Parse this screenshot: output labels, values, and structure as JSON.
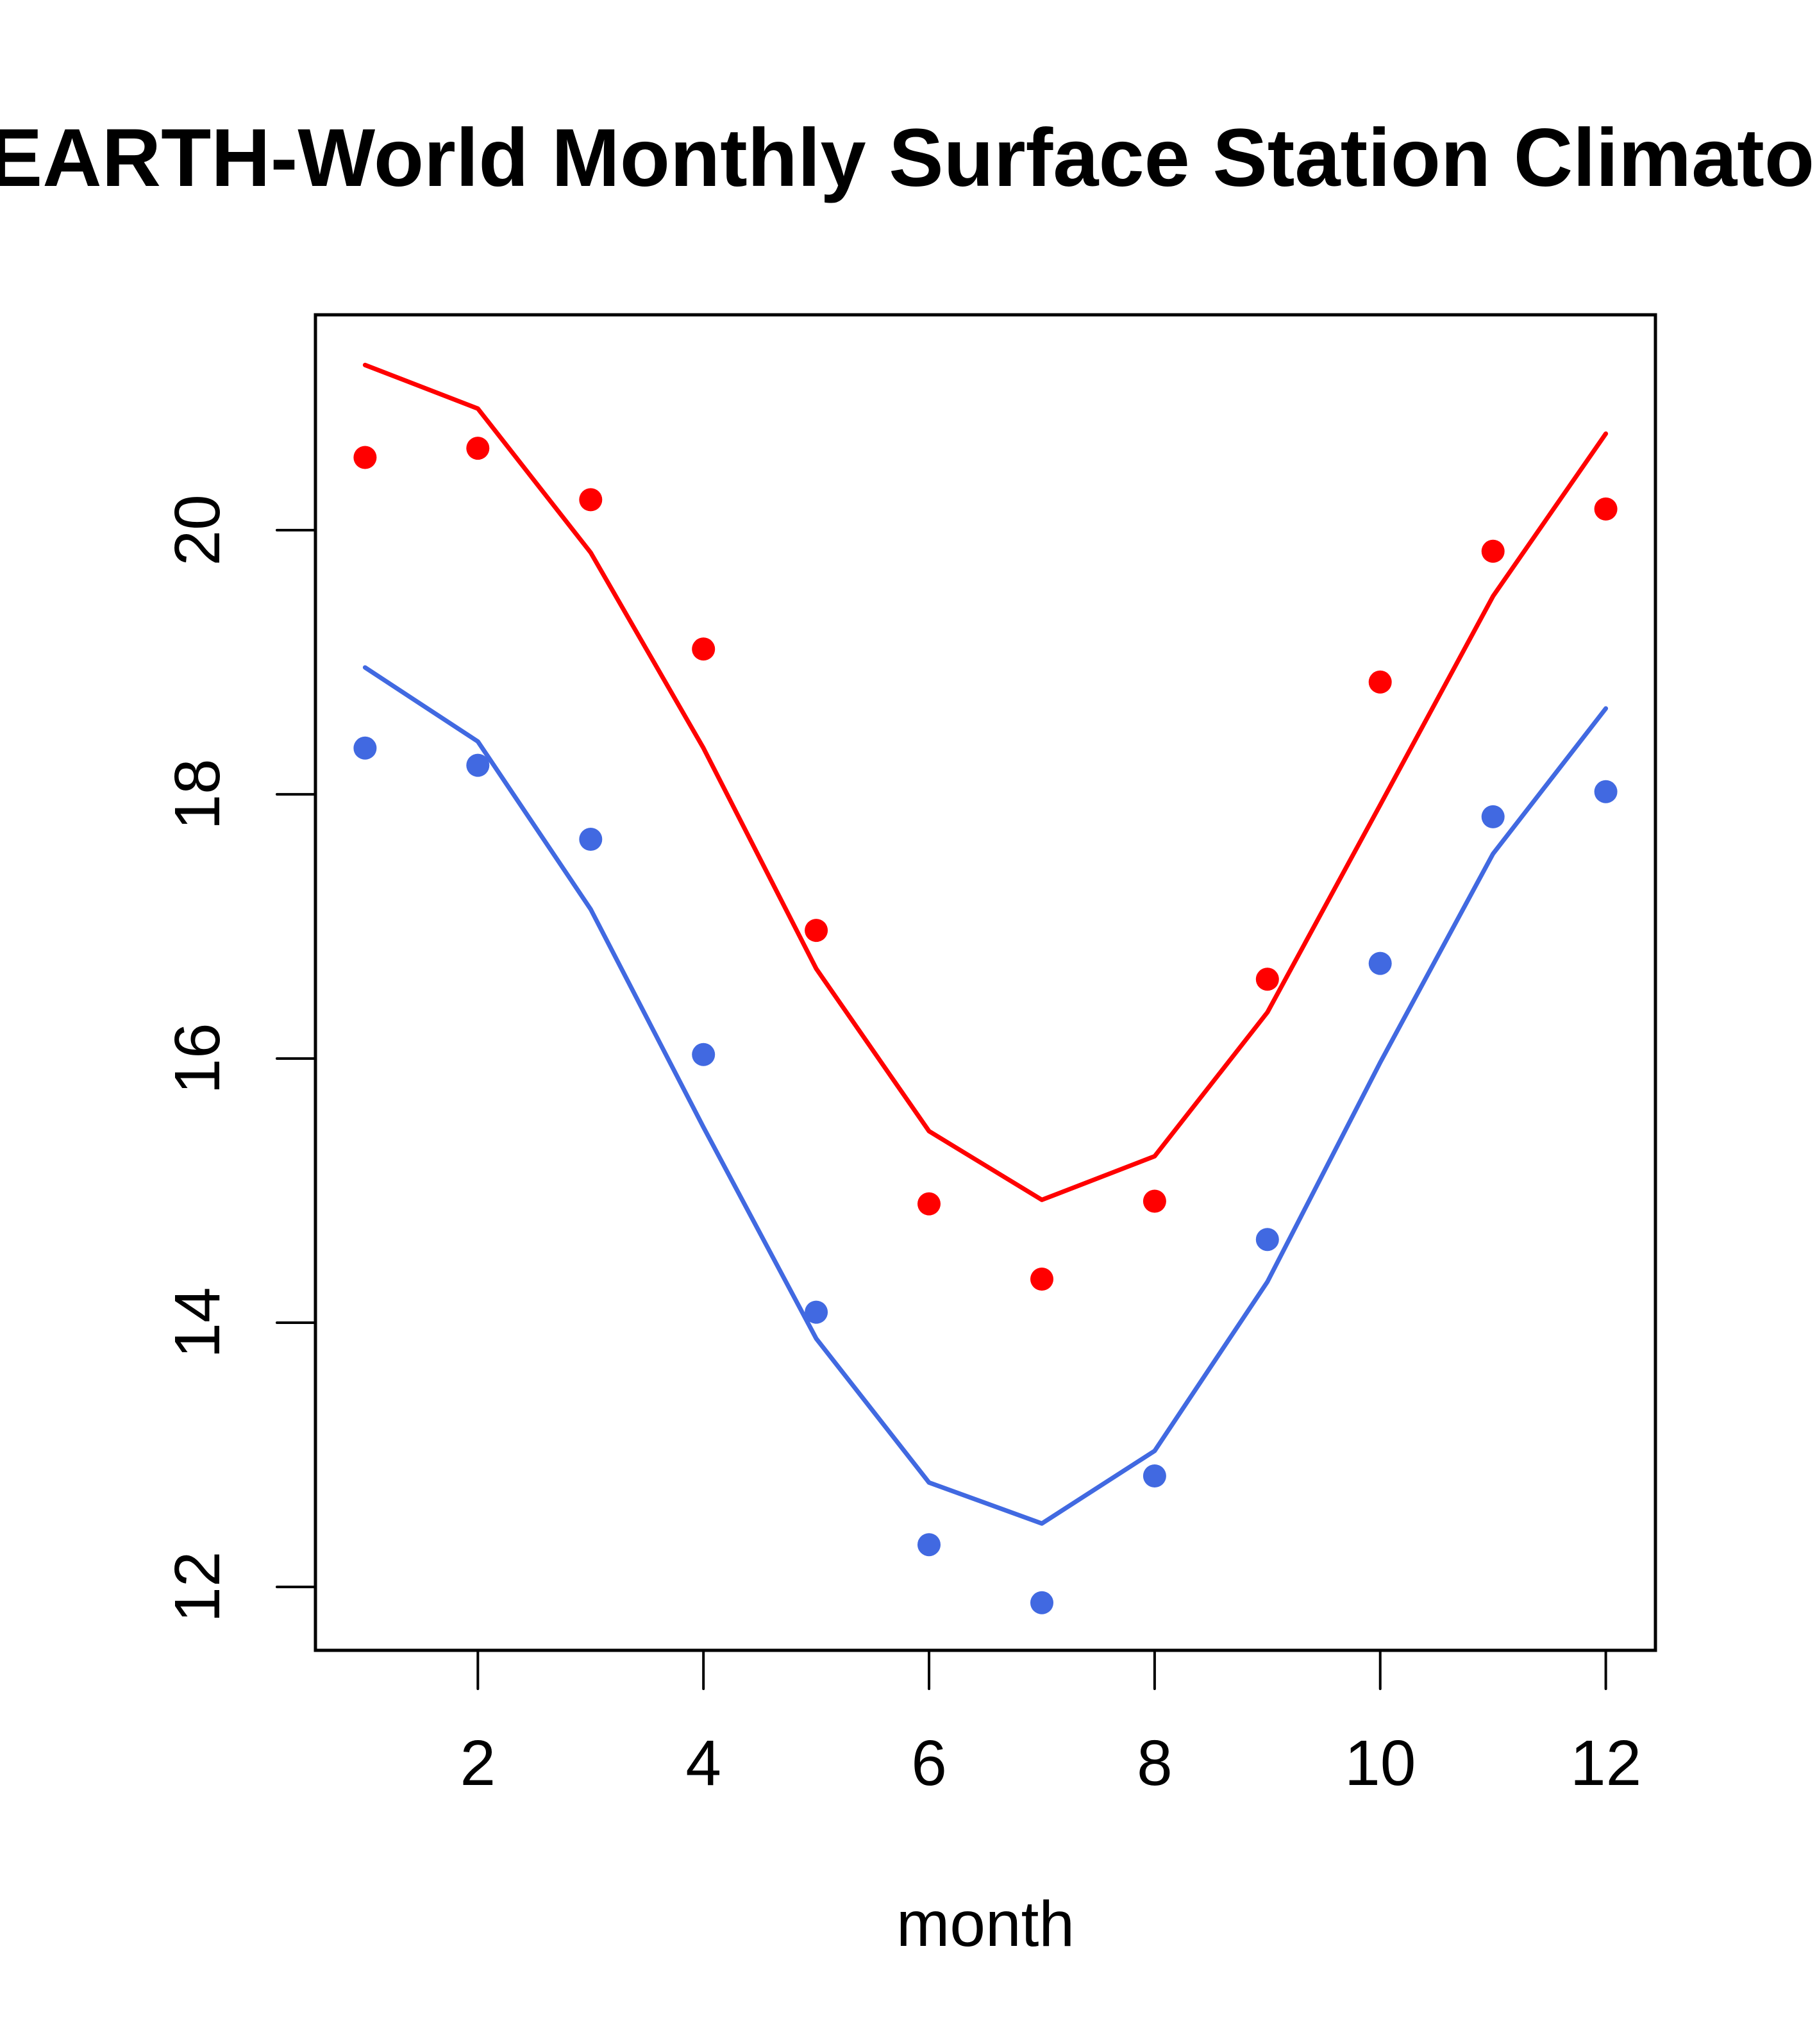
{
  "chart_data": {
    "type": "line",
    "title": "EARTH-World Monthly Surface Station Climatology",
    "xlabel": "month",
    "ylabel": "",
    "xlim": [
      0.56,
      12.44
    ],
    "ylim": [
      11.52,
      21.63
    ],
    "x": [
      1,
      2,
      3,
      4,
      5,
      6,
      7,
      8,
      9,
      10,
      11,
      12
    ],
    "xticks": [
      2,
      4,
      6,
      8,
      10,
      12
    ],
    "xtick_labels": [
      "2",
      "4",
      "6",
      "8",
      "10",
      "12"
    ],
    "yticks": [
      12,
      14,
      16,
      18,
      20
    ],
    "ytick_labels": [
      "12",
      "14",
      "16",
      "18",
      "20"
    ],
    "grid": false,
    "legend": null,
    "series": [
      {
        "name": "red-line",
        "kind": "line",
        "color": "#FF0000",
        "values": [
          21.25,
          20.92,
          19.83,
          18.35,
          16.68,
          15.45,
          14.93,
          15.26,
          16.35,
          17.92,
          19.5,
          20.73
        ]
      },
      {
        "name": "red-points",
        "kind": "points",
        "color": "#FF0000",
        "values": [
          20.55,
          20.62,
          20.23,
          19.1,
          16.97,
          14.9,
          14.33,
          14.92,
          16.6,
          18.85,
          19.84,
          20.16
        ]
      },
      {
        "name": "blue-line",
        "kind": "line",
        "color": "#4169E1",
        "values": [
          18.96,
          18.4,
          17.13,
          15.48,
          13.88,
          12.79,
          12.48,
          13.03,
          14.31,
          15.97,
          17.55,
          18.65
        ]
      },
      {
        "name": "blue-points",
        "kind": "points",
        "color": "#4169E1",
        "values": [
          18.35,
          18.22,
          17.66,
          16.03,
          14.08,
          12.32,
          11.88,
          12.84,
          14.63,
          16.72,
          17.83,
          18.02
        ]
      }
    ]
  }
}
